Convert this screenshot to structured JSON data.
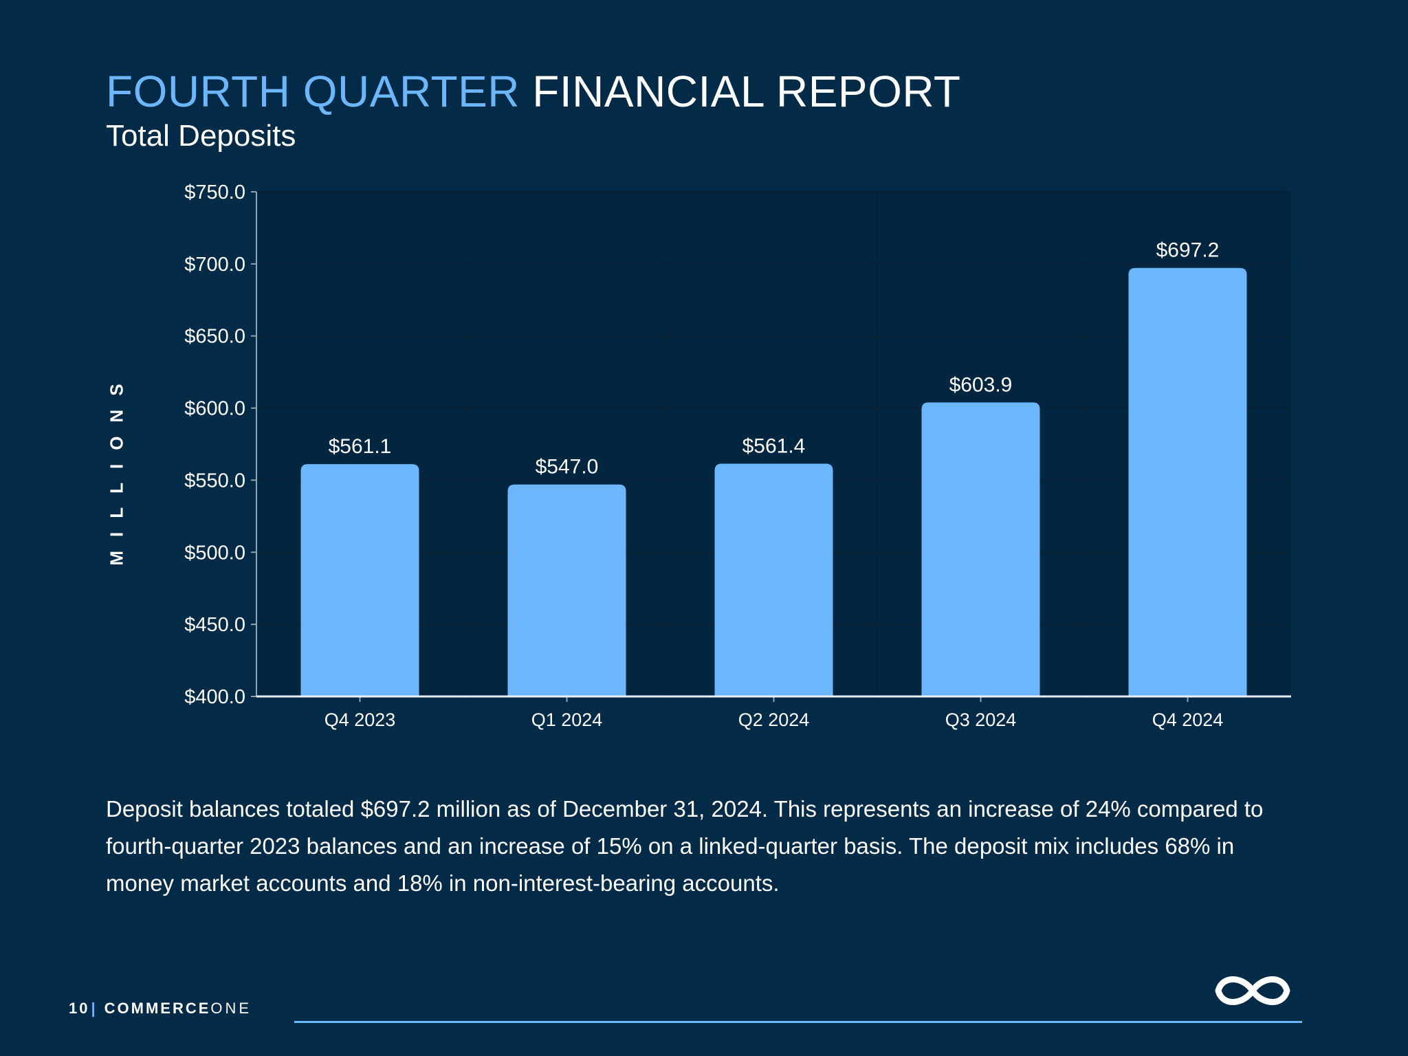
{
  "header": {
    "title_accent": "FOURTH QUARTER",
    "title_rest": "FINANCIAL REPORT",
    "subtitle": "Total Deposits"
  },
  "chart_data": {
    "type": "bar",
    "categories": [
      "Q4 2023",
      "Q1 2024",
      "Q2 2024",
      "Q3 2024",
      "Q4 2024"
    ],
    "values": [
      561.1,
      547.0,
      561.4,
      603.9,
      697.2
    ],
    "data_labels": [
      "$561.1",
      "$547.0",
      "$561.4",
      "$603.9",
      "$697.2"
    ],
    "ylabel": "MILLIONS",
    "ylim": [
      400,
      750
    ],
    "yticks": [
      400,
      450,
      500,
      550,
      600,
      650,
      700,
      750
    ],
    "ytick_labels": [
      "$400.0",
      "$450.0",
      "$500.0",
      "$550.0",
      "$600.0",
      "$650.0",
      "$700.0",
      "$750.0"
    ],
    "grid": true,
    "bar_color": "#6cb6fb"
  },
  "description": "Deposit balances totaled $697.2 million as of December 31, 2024. This represents an increase of 24% compared to fourth-quarter 2023 balances and an increase of 15% on a linked-quarter basis. The deposit mix includes 68% in money market accounts and 18% in non-interest-bearing accounts.",
  "footer": {
    "page_number": "10",
    "separator": "|",
    "brand_bold": "COMMERCE",
    "brand_light": "ONE",
    "logo_icon": "infinity-icon"
  },
  "colors": {
    "background": "#032a47",
    "accent": "#6cb6fb",
    "text": "#ffffff"
  }
}
